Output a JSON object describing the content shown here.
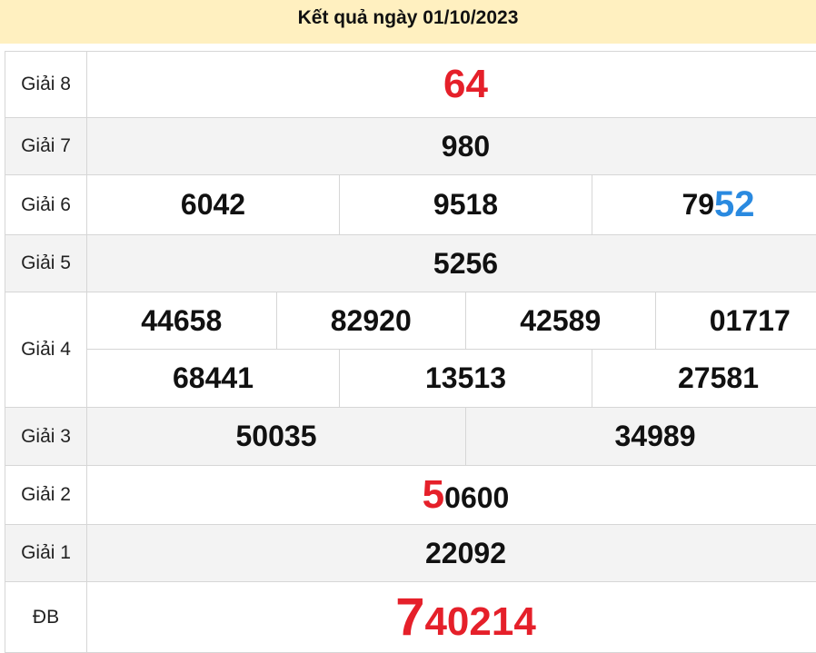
{
  "title": "Kết quả ngày 01/10/2023",
  "colors": {
    "header_bg": "#fff0c0",
    "highlight_red": "#e5202a",
    "highlight_blue": "#2a8ae0",
    "alt_row": "#f3f3f3"
  },
  "rows": {
    "g8": {
      "label": "Giải 8",
      "value": "64"
    },
    "g7": {
      "label": "Giải 7",
      "value": "980"
    },
    "g6": {
      "label": "Giải 6",
      "values": [
        "6042",
        "9518"
      ],
      "third_prefix": "79",
      "third_highlight": "52"
    },
    "g5": {
      "label": "Giải 5",
      "value": "5256"
    },
    "g4": {
      "label": "Giải 4",
      "values": [
        "44658",
        "82920",
        "42589",
        "01717",
        "68441",
        "13513",
        "27581"
      ]
    },
    "g3": {
      "label": "Giải 3",
      "values": [
        "50035",
        "34989"
      ]
    },
    "g2": {
      "label": "Giải 2",
      "highlight": "5",
      "rest": "0600"
    },
    "g1": {
      "label": "Giải 1",
      "value": "22092"
    },
    "db": {
      "label": "ĐB",
      "highlight": "7",
      "rest": "40214"
    }
  }
}
